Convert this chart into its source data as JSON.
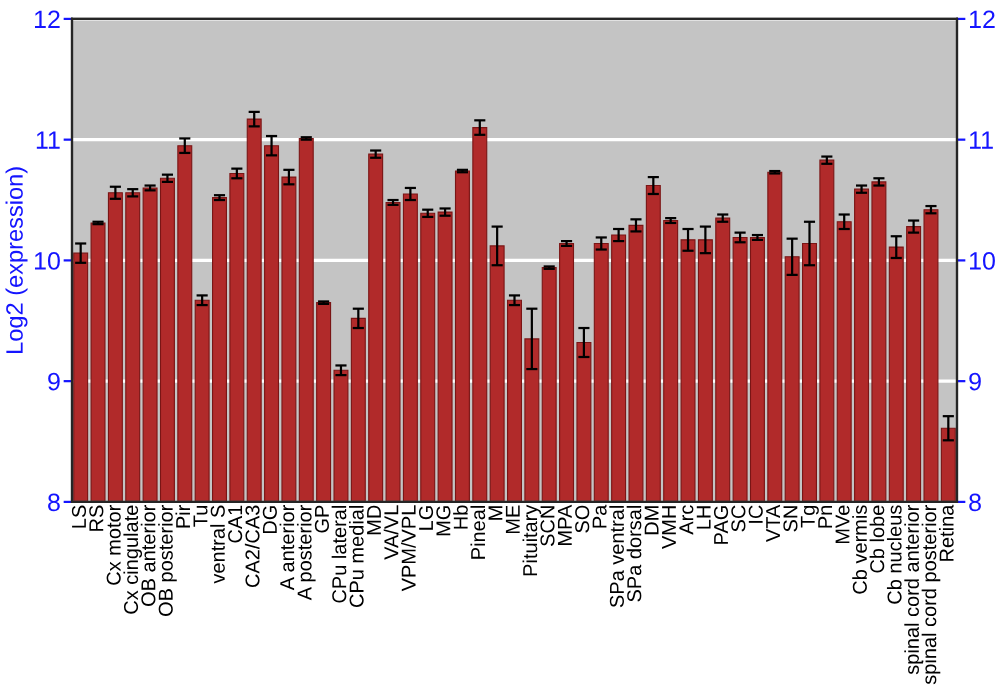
{
  "chart_data": {
    "type": "bar",
    "ylabel": "Log2 (expression)",
    "categories": [
      "LS",
      "RS",
      "Cx motor",
      "Cx cingulate",
      "OB anterior",
      "OB posterior",
      "Pir",
      "Tu",
      "ventral S",
      "CA1",
      "CA2/CA3",
      "DG",
      "A anterior",
      "A posterior",
      "GP",
      "CPu lateral",
      "CPu medial",
      "MD",
      "VA/VL",
      "VPM/VPL",
      "LG",
      "MG",
      "Hb",
      "Pineal",
      "M",
      "ME",
      "Pituitary",
      "SCN",
      "MPA",
      "SO",
      "Pa",
      "SPa ventral",
      "SPa dorsal",
      "DM",
      "VMH",
      "Arc",
      "LH",
      "PAG",
      "SC",
      "IC",
      "VTA",
      "SN",
      "Tg",
      "Pn",
      "MVe",
      "Cb vermis",
      "Cb lobe",
      "Cb nucleus",
      "spinal cord anterior",
      "spinal cord posterior",
      "Retina"
    ],
    "values": [
      10.06,
      10.31,
      10.56,
      10.56,
      10.6,
      10.68,
      10.95,
      9.67,
      10.52,
      10.72,
      11.17,
      10.95,
      10.69,
      11.01,
      9.65,
      9.09,
      9.52,
      10.88,
      10.48,
      10.55,
      10.39,
      10.4,
      10.74,
      11.1,
      10.12,
      9.67,
      9.35,
      9.94,
      10.14,
      9.32,
      10.14,
      10.21,
      10.29,
      10.62,
      10.33,
      10.17,
      10.17,
      10.35,
      10.19,
      10.19,
      10.73,
      10.03,
      10.14,
      10.83,
      10.32,
      10.59,
      10.65,
      10.11,
      10.28,
      10.42,
      8.61
    ],
    "errors": [
      0.08,
      0.01,
      0.05,
      0.03,
      0.02,
      0.03,
      0.06,
      0.04,
      0.02,
      0.04,
      0.06,
      0.08,
      0.06,
      0.01,
      0.01,
      0.04,
      0.08,
      0.03,
      0.02,
      0.05,
      0.03,
      0.03,
      0.01,
      0.06,
      0.16,
      0.04,
      0.25,
      0.01,
      0.02,
      0.12,
      0.05,
      0.05,
      0.05,
      0.07,
      0.02,
      0.09,
      0.11,
      0.03,
      0.04,
      0.02,
      0.01,
      0.15,
      0.18,
      0.03,
      0.06,
      0.03,
      0.03,
      0.09,
      0.05,
      0.03,
      0.1
    ],
    "color": "#b12a2a",
    "ylim": [
      8,
      12
    ],
    "yticks": [
      8,
      9,
      10,
      11,
      12
    ],
    "y2lim": [
      8,
      12
    ],
    "y2ticks": [
      8,
      9,
      10,
      11,
      12
    ],
    "grid": "y",
    "legend": false
  }
}
